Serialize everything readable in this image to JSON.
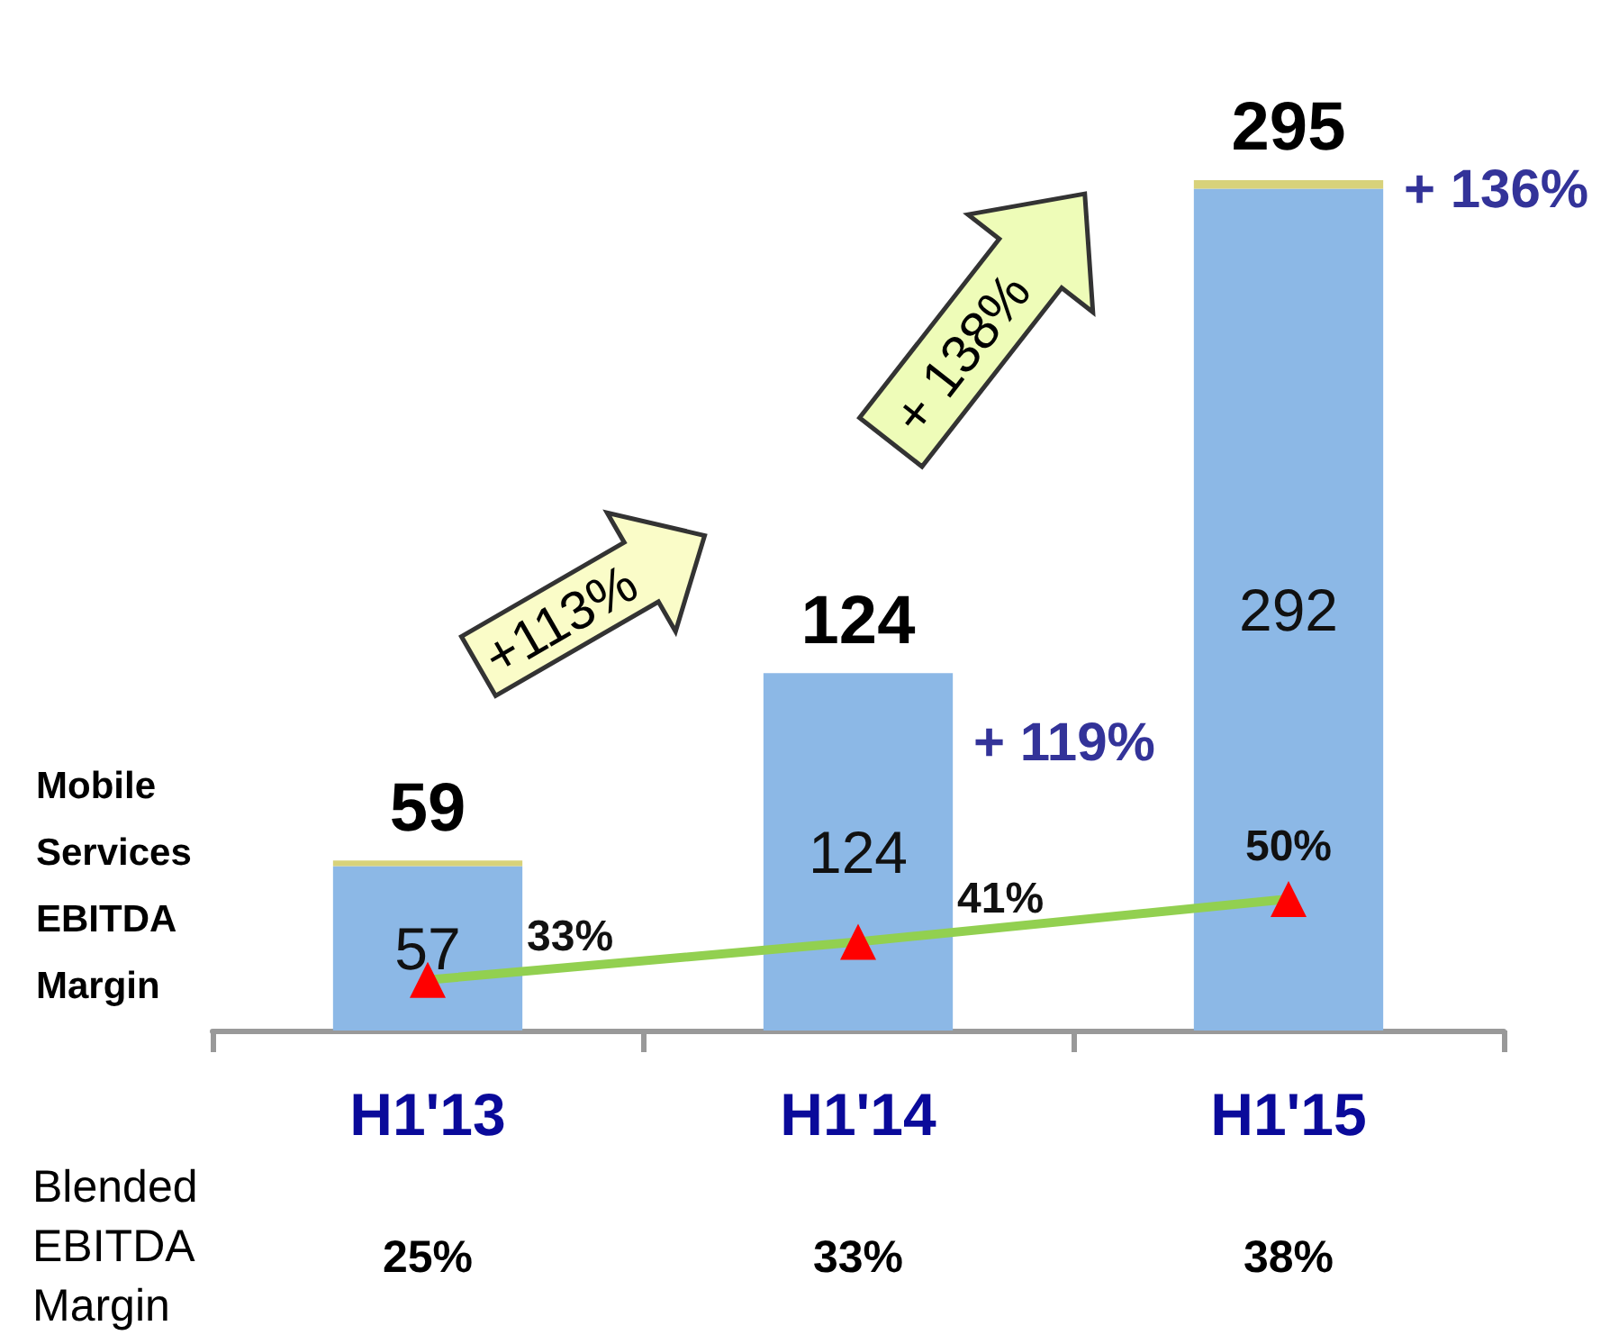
{
  "chart_data": {
    "type": "bar",
    "stacked": true,
    "categories": [
      "H1'13",
      "H1'14",
      "H1'15"
    ],
    "series": [
      {
        "color": "#8cb8e6",
        "values": [
          57,
          124,
          292
        ],
        "value_labels": [
          "57",
          "124",
          "292"
        ]
      },
      {
        "color": "#d8d27a",
        "values": [
          2,
          0,
          3
        ]
      },
      {
        "name": "Mobile Services EBITDA Margin",
        "type": "line",
        "axis": "y2",
        "color": "#92d050",
        "colors": [
          "#ff0000",
          "#ff0000",
          "#ff0000"
        ],
        "marker": "triangle",
        "values": [
          33,
          41,
          50
        ],
        "value_labels": [
          "33%",
          "41%",
          "50%"
        ]
      }
    ],
    "totals": [
      "59",
      "124",
      "295"
    ],
    "tick_labels": "x",
    "grid": false,
    "legend": false,
    "annotations": [
      "+113%",
      "+ 138%",
      {
        "text": "+ 119%",
        "x": "H1'14",
        "y": 124
      },
      {
        "text": "+ 136%",
        "x": "H1'15",
        "y": 292
      },
      "Blended EBITDA Margin",
      "25%",
      "33%",
      "38%"
    ]
  }
}
